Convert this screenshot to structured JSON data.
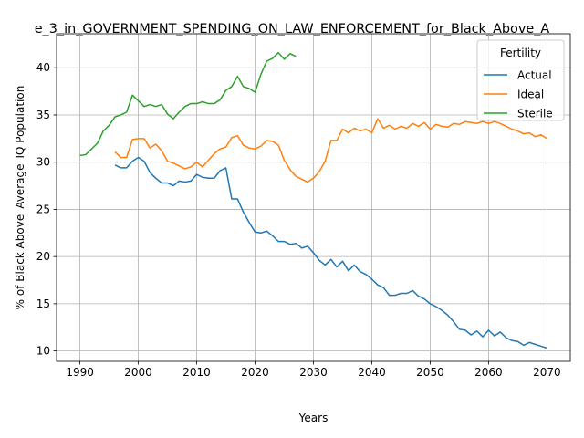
{
  "chart_data": {
    "type": "line",
    "title": "e_3_in_GOVERNMENT_SPENDING_ON_LAW_ENFORCEMENT_for_Black_Above_A",
    "xlabel": "Years",
    "ylabel": "% of Black Above_Average_IQ Population",
    "xlim": [
      1986,
      2074
    ],
    "ylim": [
      8.9,
      43.6
    ],
    "xticks": [
      1990,
      2000,
      2010,
      2020,
      2030,
      2040,
      2050,
      2060,
      2070
    ],
    "yticks": [
      10,
      15,
      20,
      25,
      30,
      35,
      40
    ],
    "grid": true,
    "legend": {
      "title": "Fertility",
      "placement": "top-right"
    },
    "series": [
      {
        "name": "Actual",
        "color": "#1f77b4",
        "x": [
          1996,
          1997,
          1998,
          1999,
          2000,
          2001,
          2002,
          2003,
          2004,
          2005,
          2006,
          2007,
          2008,
          2009,
          2010,
          2011,
          2012,
          2013,
          2014,
          2015,
          2016,
          2017,
          2018,
          2019,
          2020,
          2021,
          2022,
          2023,
          2024,
          2025,
          2026,
          2027,
          2028,
          2029,
          2030,
          2031,
          2032,
          2033,
          2034,
          2035,
          2036,
          2037,
          2038,
          2039,
          2040,
          2041,
          2042,
          2043,
          2044,
          2045,
          2046,
          2047,
          2048,
          2049,
          2050,
          2051,
          2052,
          2053,
          2054,
          2055,
          2056,
          2057,
          2058,
          2059,
          2060,
          2061,
          2062,
          2063,
          2064,
          2065,
          2066,
          2067,
          2068,
          2069,
          2070
        ],
        "values": [
          29.7,
          29.4,
          29.4,
          30.1,
          30.5,
          30.1,
          28.9,
          28.3,
          27.8,
          27.8,
          27.5,
          28.0,
          27.9,
          28.0,
          28.7,
          28.4,
          28.3,
          28.3,
          29.1,
          29.4,
          26.1,
          26.1,
          24.7,
          23.6,
          22.6,
          22.5,
          22.7,
          22.2,
          21.6,
          21.6,
          21.3,
          21.4,
          20.9,
          21.1,
          20.4,
          19.6,
          19.1,
          19.7,
          18.9,
          19.5,
          18.5,
          19.1,
          18.4,
          18.1,
          17.6,
          17.0,
          16.7,
          15.9,
          15.9,
          16.1,
          16.1,
          16.4,
          15.8,
          15.5,
          15.0,
          14.7,
          14.3,
          13.8,
          13.1,
          12.3,
          12.2,
          11.7,
          12.1,
          11.5,
          12.2,
          11.6,
          12.0,
          11.4,
          11.1,
          11.0,
          10.6,
          10.9,
          10.7,
          10.5,
          10.3
        ]
      },
      {
        "name": "Ideal",
        "color": "#ff7f0e",
        "x": [
          1996,
          1997,
          1998,
          1999,
          2000,
          2001,
          2002,
          2003,
          2004,
          2005,
          2006,
          2007,
          2008,
          2009,
          2010,
          2011,
          2012,
          2013,
          2014,
          2015,
          2016,
          2017,
          2018,
          2019,
          2020,
          2021,
          2022,
          2023,
          2024,
          2025,
          2026,
          2027,
          2028,
          2029,
          2030,
          2031,
          2032,
          2033,
          2034,
          2035,
          2036,
          2037,
          2038,
          2039,
          2040,
          2041,
          2042,
          2043,
          2044,
          2045,
          2046,
          2047,
          2048,
          2049,
          2050,
          2051,
          2052,
          2053,
          2054,
          2055,
          2056,
          2057,
          2058,
          2059,
          2060,
          2061,
          2062,
          2063,
          2064,
          2065,
          2066,
          2067,
          2068,
          2069,
          2070
        ],
        "values": [
          31.1,
          30.5,
          30.5,
          32.4,
          32.5,
          32.5,
          31.5,
          31.9,
          31.2,
          30.1,
          29.9,
          29.6,
          29.3,
          29.5,
          30.0,
          29.5,
          30.2,
          30.9,
          31.4,
          31.6,
          32.6,
          32.8,
          31.8,
          31.5,
          31.4,
          31.7,
          32.3,
          32.2,
          31.8,
          30.2,
          29.2,
          28.5,
          28.2,
          27.9,
          28.3,
          29.0,
          30.1,
          32.3,
          32.3,
          33.5,
          33.1,
          33.6,
          33.3,
          33.5,
          33.1,
          34.6,
          33.6,
          33.9,
          33.5,
          33.8,
          33.6,
          34.1,
          33.8,
          34.2,
          33.5,
          34.0,
          33.8,
          33.7,
          34.1,
          34.0,
          34.3,
          34.2,
          34.1,
          34.3,
          34.1,
          34.3,
          34.1,
          33.8,
          33.5,
          33.3,
          33.0,
          33.1,
          32.7,
          32.9,
          32.5
        ]
      },
      {
        "name": "Sterile",
        "color": "#2ca02c",
        "x": [
          1990,
          1991,
          1992,
          1993,
          1994,
          1995,
          1996,
          1997,
          1998,
          1999,
          2000,
          2001,
          2002,
          2003,
          2004,
          2005,
          2006,
          2007,
          2008,
          2009,
          2010,
          2011,
          2012,
          2013,
          2014,
          2015,
          2016,
          2017,
          2018,
          2019,
          2020,
          2021,
          2022,
          2023,
          2024,
          2025,
          2026,
          2027
        ],
        "values": [
          30.7,
          30.8,
          31.4,
          32.0,
          33.3,
          33.9,
          34.8,
          35.0,
          35.3,
          37.1,
          36.5,
          35.9,
          36.1,
          35.9,
          36.1,
          35.1,
          34.6,
          35.3,
          35.9,
          36.2,
          36.2,
          36.4,
          36.2,
          36.2,
          36.6,
          37.6,
          38.0,
          39.1,
          38.0,
          37.8,
          37.4,
          39.3,
          40.7,
          41.0,
          41.6,
          40.9,
          41.5,
          41.2
        ]
      }
    ]
  }
}
